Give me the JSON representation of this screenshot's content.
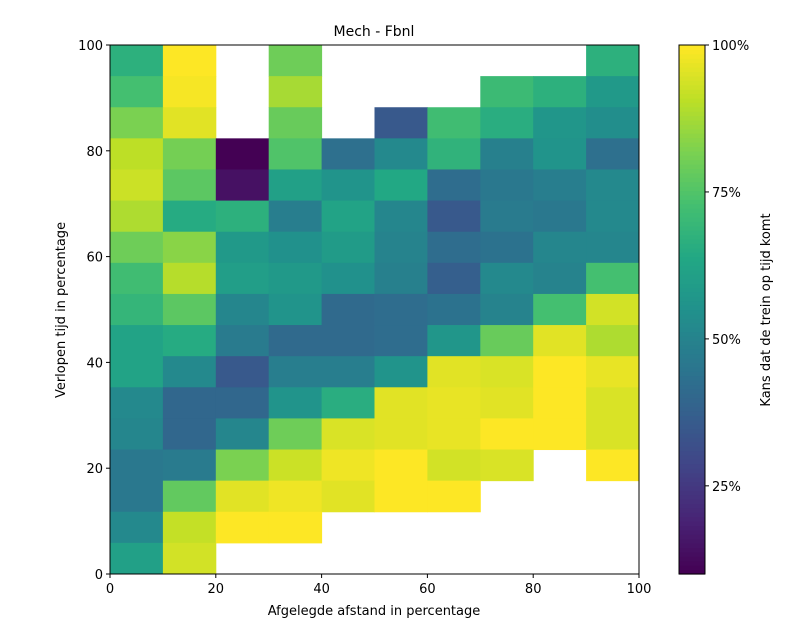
{
  "chart_data": {
    "type": "heatmap",
    "title": "Mech - Fbnl",
    "xlabel": "Afgelegde afstand in percentage",
    "ylabel": "Verlopen tijd in percentage",
    "xlim": [
      0,
      100
    ],
    "ylim": [
      0,
      100
    ],
    "x_ticks": [
      0,
      20,
      40,
      60,
      80,
      100
    ],
    "y_ticks": [
      0,
      20,
      40,
      60,
      80,
      100
    ],
    "x_bins": 10,
    "y_bins": 17,
    "colormap": "viridis",
    "colorbar": {
      "label": "Kans dat de trein op tijd komt",
      "range": [
        10,
        100
      ],
      "ticks": [
        25,
        50,
        75,
        100
      ],
      "tick_labels": [
        "25%",
        "50%",
        "75%",
        "100%"
      ]
    },
    "rows_top_to_bottom": [
      [
        67,
        100,
        null,
        80,
        null,
        null,
        null,
        null,
        null,
        67
      ],
      [
        73,
        99,
        null,
        88,
        null,
        null,
        null,
        71,
        67,
        58
      ],
      [
        82,
        96,
        null,
        79,
        null,
        35,
        72,
        66,
        57,
        54
      ],
      [
        91,
        81,
        10,
        75,
        43,
        52,
        68,
        49,
        56,
        43
      ],
      [
        93,
        77,
        14,
        61,
        56,
        64,
        42,
        46,
        48,
        52
      ],
      [
        89,
        65,
        67,
        48,
        62,
        51,
        35,
        47,
        46,
        52
      ],
      [
        80,
        84,
        58,
        55,
        59,
        50,
        42,
        44,
        51,
        51
      ],
      [
        72,
        90,
        60,
        58,
        55,
        49,
        37,
        52,
        50,
        73
      ],
      [
        69,
        77,
        51,
        56,
        41,
        42,
        44,
        50,
        73,
        94
      ],
      [
        62,
        65,
        47,
        41,
        41,
        42,
        57,
        79,
        96,
        89
      ],
      [
        62,
        52,
        35,
        48,
        48,
        56,
        96,
        95,
        100,
        97
      ],
      [
        52,
        40,
        40,
        56,
        66,
        96,
        97,
        96,
        100,
        95
      ],
      [
        51,
        40,
        51,
        80,
        95,
        96,
        97,
        100,
        100,
        95
      ],
      [
        46,
        47,
        82,
        93,
        98,
        100,
        94,
        95,
        null,
        100
      ],
      [
        46,
        78,
        96,
        98,
        96,
        100,
        100,
        null,
        null,
        null
      ],
      [
        52,
        92,
        100,
        100,
        null,
        null,
        null,
        null,
        null,
        null
      ],
      [
        61,
        94,
        null,
        null,
        null,
        null,
        null,
        null,
        null,
        null
      ]
    ]
  }
}
